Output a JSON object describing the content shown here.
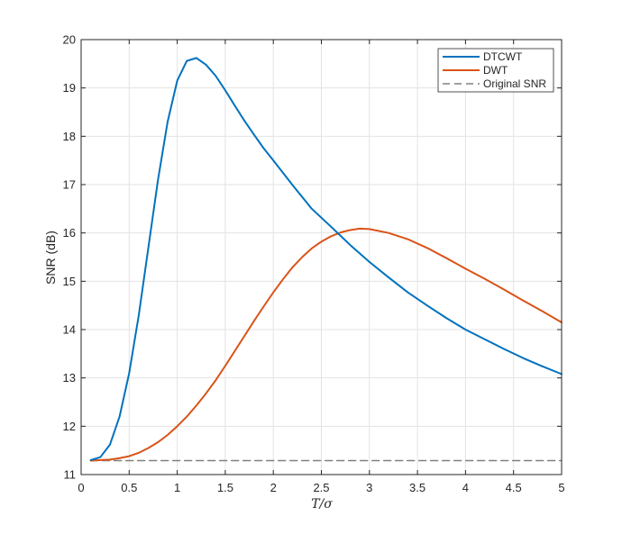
{
  "chart_data": {
    "type": "line",
    "xlabel": "T/σ",
    "ylabel": "SNR (dB)",
    "xlim": [
      0,
      5
    ],
    "ylim": [
      11,
      20
    ],
    "xticks": [
      "0",
      "0.5",
      "1",
      "1.5",
      "2",
      "2.5",
      "3",
      "3.5",
      "4",
      "4.5",
      "5"
    ],
    "yticks": [
      "11",
      "12",
      "13",
      "14",
      "15",
      "16",
      "17",
      "18",
      "19",
      "20"
    ],
    "grid": true,
    "legend_position": "top-right",
    "colors": {
      "DTCWT": "#0072BD",
      "DWT": "#D95319",
      "Original SNR": "#808080"
    },
    "series": [
      {
        "name": "DTCWT",
        "x": [
          0.1,
          0.2,
          0.3,
          0.4,
          0.5,
          0.6,
          0.7,
          0.8,
          0.9,
          1.0,
          1.1,
          1.2,
          1.3,
          1.4,
          1.5,
          1.6,
          1.7,
          1.8,
          1.9,
          2.0,
          2.2,
          2.4,
          2.6,
          2.8,
          3.0,
          3.2,
          3.4,
          3.6,
          3.8,
          4.0,
          4.2,
          4.4,
          4.6,
          4.8,
          5.0
        ],
        "y": [
          11.3,
          11.36,
          11.62,
          12.2,
          13.1,
          14.3,
          15.7,
          17.1,
          18.3,
          19.15,
          19.56,
          19.62,
          19.48,
          19.25,
          18.95,
          18.63,
          18.32,
          18.03,
          17.75,
          17.5,
          16.99,
          16.5,
          16.13,
          15.75,
          15.4,
          15.08,
          14.77,
          14.5,
          14.24,
          14.0,
          13.8,
          13.6,
          13.41,
          13.24,
          13.08
        ]
      },
      {
        "name": "DWT",
        "x": [
          0.1,
          0.2,
          0.3,
          0.4,
          0.5,
          0.6,
          0.7,
          0.8,
          0.9,
          1.0,
          1.1,
          1.2,
          1.3,
          1.4,
          1.5,
          1.6,
          1.7,
          1.8,
          1.9,
          2.0,
          2.1,
          2.2,
          2.3,
          2.4,
          2.5,
          2.6,
          2.7,
          2.8,
          2.9,
          3.0,
          3.2,
          3.4,
          3.6,
          3.8,
          4.0,
          4.2,
          4.4,
          4.6,
          4.8,
          5.0
        ],
        "y": [
          11.29,
          11.3,
          11.31,
          11.34,
          11.38,
          11.45,
          11.55,
          11.67,
          11.82,
          12.0,
          12.2,
          12.43,
          12.68,
          12.95,
          13.25,
          13.56,
          13.87,
          14.18,
          14.48,
          14.77,
          15.04,
          15.29,
          15.5,
          15.68,
          15.82,
          15.93,
          16.01,
          16.06,
          16.09,
          16.08,
          16.0,
          15.87,
          15.69,
          15.48,
          15.26,
          15.05,
          14.83,
          14.6,
          14.38,
          14.15
        ]
      },
      {
        "name": "Original SNR",
        "x": [
          0.1,
          5.0
        ],
        "y": [
          11.29,
          11.29
        ]
      }
    ]
  }
}
